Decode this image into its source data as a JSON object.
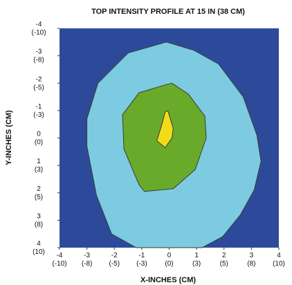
{
  "chart_data": {
    "type": "heatmap",
    "title": "TOP INTENSITY PROFILE AT 15 IN (38 CM)",
    "xlabel": "X-INCHES (CM)",
    "ylabel": "Y-INCHES (CM)",
    "xlim": [
      -4,
      4
    ],
    "ylim": [
      -4,
      4
    ],
    "x_ticks": [
      {
        "value": -4,
        "inches": "-4",
        "cm": "(-10)"
      },
      {
        "value": -3,
        "inches": "-3",
        "cm": "(-8)"
      },
      {
        "value": -2,
        "inches": "-2",
        "cm": "(-5)"
      },
      {
        "value": -1,
        "inches": "-1",
        "cm": "(-3)"
      },
      {
        "value": 0,
        "inches": "0",
        "cm": "(0)"
      },
      {
        "value": 1,
        "inches": "1",
        "cm": "(3)"
      },
      {
        "value": 2,
        "inches": "2",
        "cm": "(5)"
      },
      {
        "value": 3,
        "inches": "3",
        "cm": "(8)"
      },
      {
        "value": 4,
        "inches": "4",
        "cm": "(10)"
      }
    ],
    "y_ticks": [
      {
        "value": -4,
        "inches": "-4",
        "cm": "(-10)"
      },
      {
        "value": -3,
        "inches": "-3",
        "cm": "(-8)"
      },
      {
        "value": -2,
        "inches": "-2",
        "cm": "(-5)"
      },
      {
        "value": -1,
        "inches": "-1",
        "cm": "(-3)"
      },
      {
        "value": 0,
        "inches": "0",
        "cm": "(0)"
      },
      {
        "value": 1,
        "inches": "1",
        "cm": "(3)"
      },
      {
        "value": 2,
        "inches": "2",
        "cm": "(5)"
      },
      {
        "value": 3,
        "inches": "3",
        "cm": "(8)"
      },
      {
        "value": 4,
        "inches": "4",
        "cm": "(10)"
      }
    ],
    "background_color": "#2d4a9a",
    "regions": [
      {
        "level": "outer",
        "color": "#7ccbe0",
        "polygon": [
          [
            -0.1,
            -3.5
          ],
          [
            -1.5,
            -3.1
          ],
          [
            -2.6,
            -2.0
          ],
          [
            -3.0,
            -0.7
          ],
          [
            -3.0,
            0.3
          ],
          [
            -2.65,
            2.1
          ],
          [
            -2.1,
            3.5
          ],
          [
            -1.2,
            4.0
          ],
          [
            1.2,
            4.0
          ],
          [
            1.95,
            3.6
          ],
          [
            2.6,
            2.8
          ],
          [
            3.1,
            1.9
          ],
          [
            3.35,
            0.85
          ],
          [
            3.2,
            -0.1
          ],
          [
            2.7,
            -1.5
          ],
          [
            1.8,
            -2.7
          ],
          [
            0.9,
            -3.2
          ]
        ]
      },
      {
        "level": "middle",
        "color": "#6aaa2a",
        "polygon": [
          [
            -0.1,
            -1.95
          ],
          [
            -1.1,
            -1.65
          ],
          [
            -1.7,
            -0.85
          ],
          [
            -1.65,
            0.4
          ],
          [
            -1.1,
            1.7
          ],
          [
            -0.9,
            1.95
          ],
          [
            0.15,
            1.85
          ],
          [
            0.95,
            1.15
          ],
          [
            1.35,
            0.0
          ],
          [
            1.3,
            -0.8
          ],
          [
            0.7,
            -1.6
          ],
          [
            0.1,
            -2.0
          ]
        ]
      },
      {
        "level": "center",
        "color": "#f2dc1a",
        "polygon": [
          [
            -0.15,
            -0.95
          ],
          [
            -0.05,
            -1.0
          ],
          [
            0.15,
            -0.35
          ],
          [
            0.1,
            0.0
          ],
          [
            -0.15,
            0.35
          ],
          [
            -0.45,
            0.1
          ],
          [
            -0.25,
            -0.55
          ]
        ]
      }
    ],
    "grid": false,
    "legend": "none"
  }
}
